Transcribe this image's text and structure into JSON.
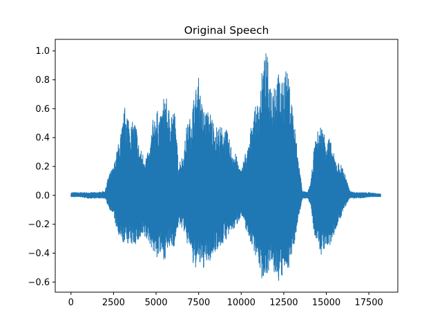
{
  "chart_data": {
    "type": "line",
    "title": "Original Speech",
    "xlabel": "",
    "ylabel": "",
    "xlim": [
      -925,
      19200
    ],
    "ylim": [
      -0.67,
      1.08
    ],
    "grid": false,
    "legend": "none",
    "x_ticks": [
      0,
      2500,
      5000,
      7500,
      10000,
      12500,
      15000,
      17500
    ],
    "x_tick_labels": [
      "0",
      "2500",
      "5000",
      "7500",
      "10000",
      "12500",
      "15000",
      "17500"
    ],
    "y_ticks": [
      -0.6,
      -0.4,
      -0.2,
      0.0,
      0.2,
      0.4,
      0.6,
      0.8,
      1.0
    ],
    "y_tick_labels": [
      "−0.6",
      "−0.4",
      "−0.2",
      "0.0",
      "0.2",
      "0.4",
      "0.6",
      "0.8",
      "1.0"
    ],
    "series": [
      {
        "color": "#1f77b4",
        "num_samples": 18200,
        "envelope": {
          "x": [
            0,
            500,
            1000,
            1500,
            2000,
            2200,
            2500,
            2800,
            3000,
            3200,
            3500,
            3800,
            4000,
            4300,
            4600,
            4800,
            5000,
            5300,
            5500,
            5700,
            5900,
            6100,
            6300,
            6600,
            6800,
            7000,
            7200,
            7500,
            7700,
            7900,
            8200,
            8500,
            8800,
            9100,
            9400,
            9700,
            10000,
            10200,
            10400,
            10700,
            11000,
            11200,
            11400,
            11500,
            11700,
            12000,
            12200,
            12400,
            12600,
            12800,
            13000,
            13300,
            13600,
            13900,
            14100,
            14300,
            14500,
            14700,
            14800,
            15000,
            15200,
            15400,
            15600,
            15800,
            16000,
            16200,
            16400,
            16700,
            17000,
            17500,
            18200
          ],
          "upper": [
            0.02,
            0.02,
            0.02,
            0.02,
            0.03,
            0.14,
            0.2,
            0.37,
            0.48,
            0.65,
            0.5,
            0.52,
            0.34,
            0.28,
            0.3,
            0.52,
            0.6,
            0.55,
            0.74,
            0.61,
            0.62,
            0.58,
            0.24,
            0.28,
            0.49,
            0.54,
            0.68,
            0.82,
            0.63,
            0.59,
            0.58,
            0.48,
            0.48,
            0.47,
            0.35,
            0.28,
            0.17,
            0.29,
            0.33,
            0.58,
            0.65,
            0.84,
            0.98,
            1.0,
            0.8,
            0.84,
            0.85,
            0.78,
            0.91,
            0.8,
            0.65,
            0.32,
            0.03,
            0.02,
            0.1,
            0.35,
            0.45,
            0.5,
            0.46,
            0.42,
            0.4,
            0.3,
            0.24,
            0.22,
            0.2,
            0.1,
            0.03,
            0.02,
            0.02,
            0.02,
            0.01
          ],
          "lower": [
            -0.01,
            -0.01,
            -0.02,
            -0.02,
            -0.02,
            -0.08,
            -0.14,
            -0.3,
            -0.34,
            -0.32,
            -0.35,
            -0.34,
            -0.32,
            -0.3,
            -0.33,
            -0.38,
            -0.44,
            -0.42,
            -0.45,
            -0.38,
            -0.37,
            -0.35,
            -0.21,
            -0.23,
            -0.34,
            -0.36,
            -0.52,
            -0.48,
            -0.52,
            -0.49,
            -0.46,
            -0.38,
            -0.36,
            -0.31,
            -0.26,
            -0.22,
            -0.14,
            -0.21,
            -0.28,
            -0.37,
            -0.46,
            -0.58,
            -0.56,
            -0.55,
            -0.5,
            -0.56,
            -0.6,
            -0.58,
            -0.52,
            -0.5,
            -0.42,
            -0.2,
            -0.02,
            -0.02,
            -0.08,
            -0.28,
            -0.34,
            -0.42,
            -0.38,
            -0.37,
            -0.36,
            -0.3,
            -0.22,
            -0.18,
            -0.1,
            -0.06,
            -0.02,
            -0.02,
            -0.02,
            -0.01,
            -0.01
          ]
        }
      }
    ]
  }
}
